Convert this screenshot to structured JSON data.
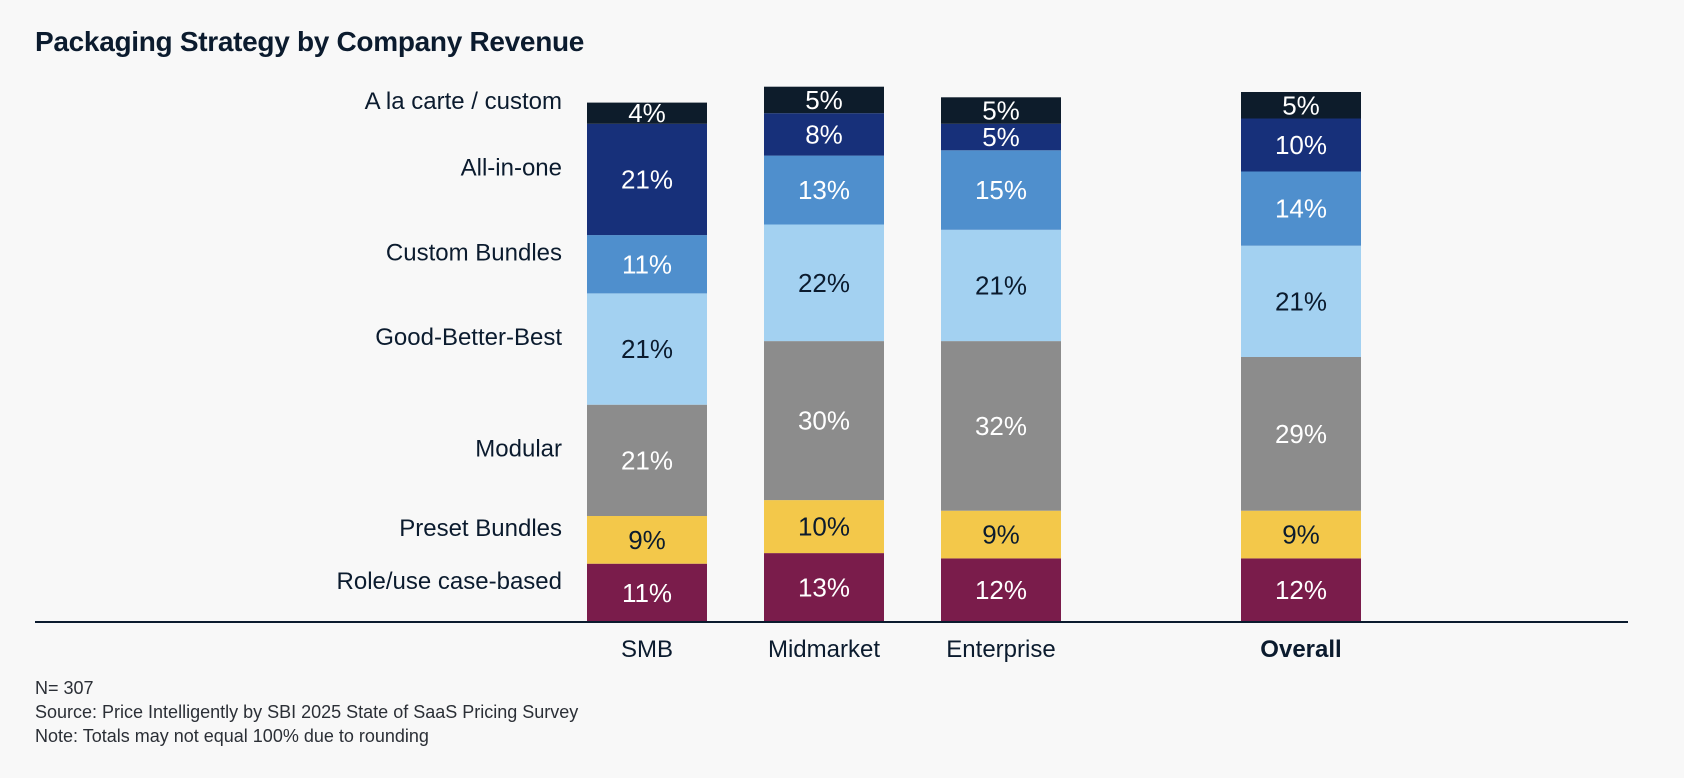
{
  "chart_data": {
    "type": "stacked-bar",
    "title": "Packaging Strategy by Company Revenue",
    "categories": [
      "SMB",
      "Midmarket",
      "Enterprise",
      "Overall"
    ],
    "category_emphasis": [
      false,
      false,
      false,
      true
    ],
    "series": [
      {
        "name": "Role/use case-based",
        "color": "#7a1c4b",
        "text_color": "#ffffff",
        "values": [
          11,
          13,
          12,
          12
        ],
        "labels": [
          "11%",
          "13%",
          "12%",
          "12%"
        ]
      },
      {
        "name": "Preset Bundles",
        "color": "#f3c84a",
        "text_color": "#0b1b2e",
        "values": [
          9,
          10,
          9,
          9
        ],
        "labels": [
          "9%",
          "10%",
          "9%",
          "9%"
        ]
      },
      {
        "name": "Modular",
        "color": "#8c8c8c",
        "text_color": "#ffffff",
        "values": [
          21,
          30,
          32,
          29
        ],
        "labels": [
          "21%",
          "30%",
          "32%",
          "29%"
        ]
      },
      {
        "name": "Good-Better-Best",
        "color": "#a3d1f1",
        "text_color": "#0b1b2e",
        "values": [
          21,
          22,
          21,
          21
        ],
        "labels": [
          "21%",
          "22%",
          "21%",
          "21%"
        ]
      },
      {
        "name": "Custom Bundles",
        "color": "#4f8fcd",
        "text_color": "#ffffff",
        "values": [
          11,
          13,
          15,
          14
        ],
        "labels": [
          "11%",
          "13%",
          "15%",
          "14%"
        ]
      },
      {
        "name": "All-in-one",
        "color": "#17307a",
        "text_color": "#ffffff",
        "values": [
          21,
          8,
          5,
          10
        ],
        "labels": [
          "21%",
          "8%",
          "5%",
          "10%"
        ]
      },
      {
        "name": "A la carte / custom",
        "color": "#0d1c2b",
        "text_color": "#ffffff",
        "values": [
          4,
          5,
          5,
          5
        ],
        "labels": [
          "4%",
          "5%",
          "5%",
          "5%"
        ]
      }
    ],
    "ylim": [
      0,
      100
    ],
    "legend_placement": "left"
  },
  "footnotes": {
    "n": "N= 307",
    "source": "Source: Price Intelligently by SBI 2025 State of SaaS Pricing Survey",
    "note": "Note: Totals may not equal 100% due to rounding"
  },
  "colors": {
    "background": "#f8f8f8",
    "text": "#0b1b2e",
    "axis": "#0b1b2e"
  }
}
